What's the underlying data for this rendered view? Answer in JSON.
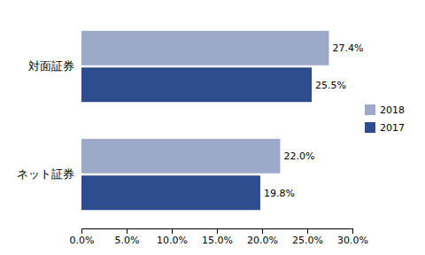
{
  "chart_data": {
    "type": "bar",
    "orientation": "horizontal",
    "categories": [
      "対面証券",
      "ネット証券"
    ],
    "series": [
      {
        "name": "2018",
        "color": "#9da9c8",
        "values": [
          0.274,
          0.22
        ],
        "value_labels": [
          "27.4%",
          "22.0%"
        ]
      },
      {
        "name": "2017",
        "color": "#2e4d8e",
        "values": [
          0.255,
          0.198
        ],
        "value_labels": [
          "25.5%",
          "19.8%"
        ]
      }
    ],
    "xlim": [
      0,
      0.3
    ],
    "xticks": [
      {
        "value": 0.0,
        "label": "0.0%"
      },
      {
        "value": 0.05,
        "label": "5.0%"
      },
      {
        "value": 0.1,
        "label": "10.0%"
      },
      {
        "value": 0.15,
        "label": "15.0%"
      },
      {
        "value": 0.2,
        "label": "20.0%"
      },
      {
        "value": 0.25,
        "label": "25.0%"
      },
      {
        "value": 0.3,
        "label": "30.0%"
      }
    ],
    "legend": "right",
    "grid": false
  }
}
